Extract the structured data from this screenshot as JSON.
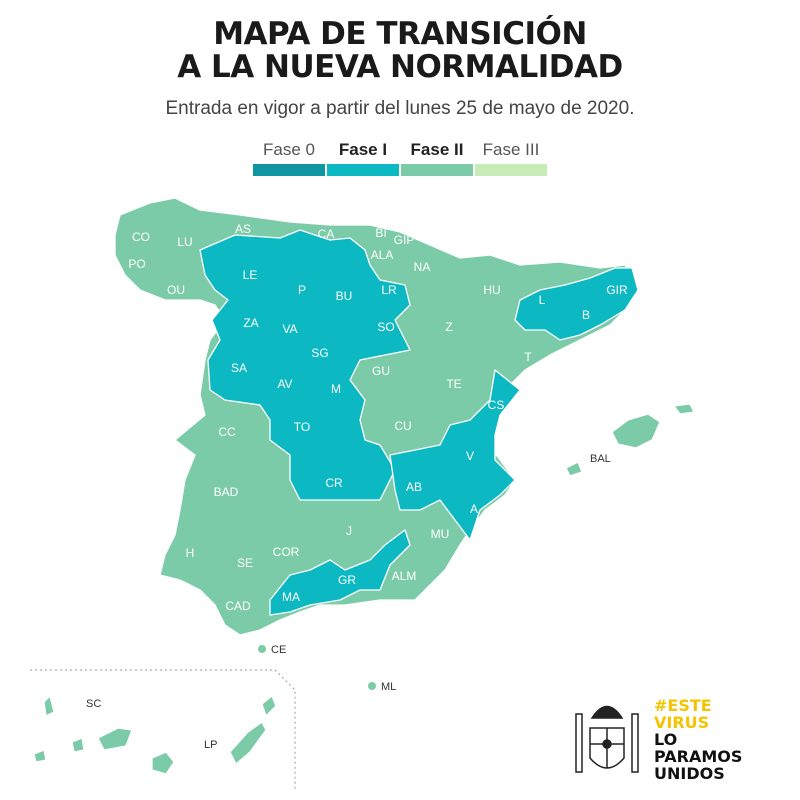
{
  "title_line1": "MAPA DE TRANSICIÓN",
  "title_line2": "A LA NUEVA NORMALIDAD",
  "subtitle": "Entrada en vigor a partir del lunes 25 de mayo de 2020.",
  "legend": [
    {
      "label": "Fase 0",
      "color": "#0e97a3"
    },
    {
      "label": "Fase I",
      "color": "#0cb8c2"
    },
    {
      "label": "Fase II",
      "color": "#7ccba8"
    },
    {
      "label": "Fase III",
      "color": "#c8ecb8"
    }
  ],
  "provinces": {
    "fase_I": [
      "LE",
      "P",
      "BU",
      "ZA",
      "VA",
      "SO",
      "SG",
      "SA",
      "AV",
      "M",
      "TO",
      "CR",
      "AB",
      "V",
      "CS",
      "A",
      "MA",
      "GR",
      "L",
      "B",
      "GIR"
    ],
    "fase_II": [
      "CO",
      "LU",
      "AS",
      "CA",
      "BI",
      "GIP",
      "ALA",
      "NA",
      "PO",
      "OU",
      "LR",
      "HU",
      "Z",
      "TE",
      "GU",
      "CU",
      "CC",
      "BAD",
      "COR",
      "J",
      "H",
      "SE",
      "CAD",
      "MU",
      "ALM",
      "T",
      "BAL",
      "CE",
      "ML",
      "SC",
      "LP"
    ]
  },
  "labels": {
    "CO": "CO",
    "LU": "LU",
    "AS": "AS",
    "CA": "CA",
    "BI": "BI",
    "GIP": "GIP",
    "ALA": "ALA",
    "NA": "NA",
    "PO": "PO",
    "OU": "OU",
    "LE": "LE",
    "P": "P",
    "BU": "BU",
    "LR": "LR",
    "HU": "HU",
    "L": "L",
    "GIR": "GIR",
    "B": "B",
    "ZA": "ZA",
    "VA": "VA",
    "SO": "SO",
    "Z": "Z",
    "SG": "SG",
    "SA": "SA",
    "AV": "AV",
    "M": "M",
    "GU": "GU",
    "TE": "TE",
    "T": "T",
    "CS": "CS",
    "CC": "CC",
    "TO": "TO",
    "CU": "CU",
    "V": "V",
    "BAL": "BAL",
    "BAD": "BAD",
    "CR": "CR",
    "AB": "AB",
    "A": "A",
    "COR": "COR",
    "J": "J",
    "MU": "MU",
    "H": "H",
    "SE": "SE",
    "ALM": "ALM",
    "GR": "GR",
    "MA": "MA",
    "CAD": "CAD",
    "CE": "CE",
    "ML": "ML",
    "SC": "SC",
    "LP": "LP"
  },
  "logo": {
    "line1": "#ESTE",
    "line2": "VIRUS",
    "line3": "LO",
    "line4": "PARAMOS",
    "line5": "UNIDOS"
  }
}
